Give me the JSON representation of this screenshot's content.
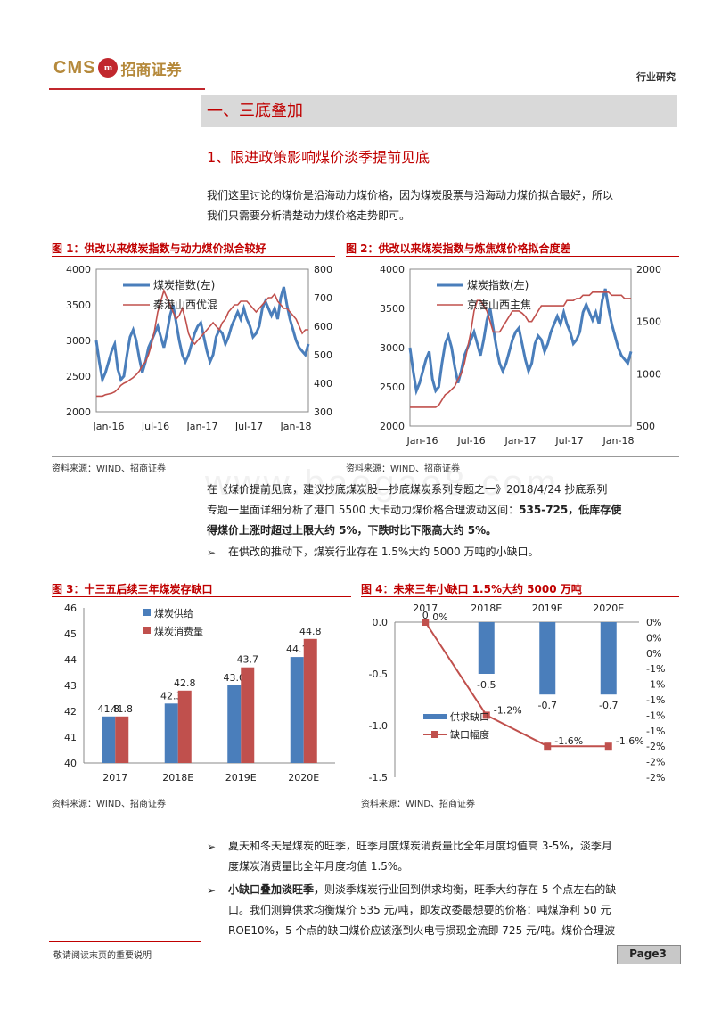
{
  "header": {
    "logo_cms": "CMS",
    "logo_seal": "m",
    "logo_cn": "招商证券",
    "right": "行业研究"
  },
  "section": {
    "title": "一、三底叠加",
    "subtitle": "1、限进政策影响煤价淡季提前见底"
  },
  "intro": [
    "我们这里讨论的煤价是沿海动力煤价格，因为煤炭股票与沿海动力煤价拟合最好，所以",
    "我们只需要分析清楚动力煤价格走势即可。"
  ],
  "fig1": {
    "title": "图 1：供改以来煤炭指数与动力煤价拟合较好",
    "source": "资料来源：WIND、招商证券"
  },
  "fig2": {
    "title": "图 2：供改以来煤炭指数与炼焦煤价格拟合度差",
    "source": "资料来源：WIND、招商证券"
  },
  "mid": {
    "line1": "在《煤价提前见底，建议抄底煤炭股—抄底煤炭系列专题之一》2018/4/24 抄底系列",
    "line2_a": "专题一里面详细分析了港口 5500 大卡动力煤价格合理波动区间：",
    "line2_b": "535-725，低库存使",
    "line3": "得煤价上涨时超过上限大约 5%，下跌时比下限高大约 5%。",
    "bullet": "在供改的推动下，煤炭行业存在 1.5%大约 5000 万吨的小缺口。"
  },
  "fig3": {
    "title": "图 3：十三五后续三年煤炭存缺口",
    "source": "资料来源：WIND、招商证券"
  },
  "fig4": {
    "title": "图 4：未来三年小缺口 1.5%大约 5000 万吨",
    "source": "资料来源：WIND、招商证券"
  },
  "lower": {
    "b1_l1": "夏天和冬天是煤炭的旺季，旺季月度煤炭消费量比全年月度均值高 3-5%，淡季月",
    "b1_l2": "度煤炭消费量比全年月度均值 1.5%。",
    "b2_l1_bold": "小缺口叠加淡旺季，",
    "b2_l1": "则淡季煤炭行业回到供求均衡，旺季大约存在 5 个点左右的缺",
    "b2_l2": "口。我们测算供求均衡煤价 535 元/吨，即发改委最想要的价格：吨煤净利 50 元",
    "b2_l3": "ROE10%，5 个点的缺口煤价应该涨到火电亏损现金流即 725 元/吨。煤价合理波"
  },
  "footer": {
    "note": "敬请阅读末页的重要说明",
    "page": "Page3"
  },
  "watermark": "www.baogao8.com",
  "chart_data": [
    {
      "id": "fig1",
      "type": "line",
      "x_ticks": [
        "Jan-16",
        "Jul-16",
        "Jan-17",
        "Jul-17",
        "Jan-18"
      ],
      "ylim_left": [
        2000,
        4000
      ],
      "yticks_left": [
        2000,
        2500,
        3000,
        3500,
        4000
      ],
      "ylim_right": [
        300,
        800
      ],
      "yticks_right": [
        300,
        400,
        500,
        600,
        700,
        800
      ],
      "series": [
        {
          "name": "煤炭指数(左)",
          "axis": "left",
          "color": "#4a7ebb",
          "values": [
            3000,
            2700,
            2450,
            2550,
            2700,
            2850,
            2950,
            2600,
            2450,
            2500,
            2800,
            3050,
            3150,
            3000,
            2750,
            2550,
            2700,
            2900,
            3000,
            3100,
            3200,
            3050,
            2900,
            3100,
            3350,
            3500,
            3250,
            3000,
            2800,
            2700,
            2800,
            2950,
            3100,
            3200,
            3250,
            3050,
            2850,
            2700,
            2800,
            3050,
            3150,
            3100,
            2950,
            3050,
            3200,
            3300,
            3400,
            3300,
            3450,
            3300,
            3200,
            3050,
            3100,
            3200,
            3450,
            3550,
            3450,
            3350,
            3450,
            3300,
            3600,
            3750,
            3500,
            3300,
            3150,
            3000,
            2900,
            2850,
            2800,
            2950
          ]
        },
        {
          "name": "秦港山西优混",
          "axis": "left",
          "color": "#c0504d",
          "values": [
            2220,
            2220,
            2220,
            2240,
            2250,
            2260,
            2280,
            2320,
            2370,
            2400,
            2420,
            2450,
            2480,
            2520,
            2570,
            2650,
            2700,
            2800,
            2950,
            3150,
            3400,
            3550,
            3700,
            3600,
            3500,
            3400,
            3300,
            3350,
            3450,
            3300,
            3100,
            3000,
            2950,
            3000,
            3050,
            3100,
            3150,
            3200,
            3250,
            3200,
            3150,
            3250,
            3300,
            3400,
            3450,
            3500,
            3500,
            3550,
            3550,
            3550,
            3500,
            3450,
            3400,
            3450,
            3500,
            3550,
            3600,
            3600,
            3650,
            3550,
            3500,
            3450,
            3450,
            3400,
            3350,
            3300,
            3200,
            3100,
            3150,
            3150
          ]
        }
      ],
      "right_axis_note": "秦港山西优混 plotted on right axis (元/吨)"
    },
    {
      "id": "fig2",
      "type": "line",
      "x_ticks": [
        "Jan-16",
        "Jul-16",
        "Jan-17",
        "Jul-17",
        "Jan-18"
      ],
      "ylim_left": [
        2000,
        4000
      ],
      "yticks_left": [
        2000,
        2500,
        3000,
        3500,
        4000
      ],
      "ylim_right": [
        500,
        2000
      ],
      "yticks_right": [
        500,
        1000,
        1500,
        2000
      ],
      "series": [
        {
          "name": "煤炭指数(左)",
          "axis": "left",
          "color": "#4a7ebb",
          "values": [
            3000,
            2700,
            2450,
            2550,
            2700,
            2850,
            2950,
            2600,
            2450,
            2500,
            2800,
            3050,
            3150,
            3000,
            2750,
            2550,
            2700,
            2900,
            3000,
            3100,
            3200,
            3050,
            2900,
            3100,
            3350,
            3500,
            3250,
            3000,
            2800,
            2700,
            2800,
            2950,
            3100,
            3200,
            3250,
            3050,
            2850,
            2700,
            2800,
            3050,
            3150,
            3100,
            2950,
            3050,
            3200,
            3300,
            3400,
            3300,
            3450,
            3300,
            3200,
            3050,
            3100,
            3200,
            3450,
            3550,
            3450,
            3350,
            3450,
            3300,
            3600,
            3750,
            3500,
            3300,
            3150,
            3000,
            2900,
            2850,
            2800,
            2950
          ]
        },
        {
          "name": "京唐山西主焦",
          "axis": "right",
          "color": "#c0504d",
          "values": [
            680,
            680,
            680,
            680,
            680,
            680,
            680,
            680,
            680,
            700,
            750,
            800,
            820,
            850,
            880,
            950,
            1000,
            1100,
            1250,
            1400,
            1600,
            1700,
            1700,
            1650,
            1600,
            1500,
            1400,
            1400,
            1400,
            1450,
            1500,
            1550,
            1600,
            1600,
            1600,
            1580,
            1550,
            1500,
            1500,
            1550,
            1600,
            1650,
            1650,
            1650,
            1650,
            1650,
            1650,
            1650,
            1650,
            1700,
            1700,
            1700,
            1720,
            1720,
            1750,
            1750,
            1750,
            1780,
            1780,
            1780,
            1780,
            1780,
            1780,
            1750,
            1750,
            1750,
            1750,
            1720,
            1720,
            1720
          ]
        }
      ]
    },
    {
      "id": "fig3",
      "type": "bar",
      "categories": [
        "2017",
        "2018E",
        "2019E",
        "2020E"
      ],
      "ylim": [
        40,
        46
      ],
      "yticks": [
        40,
        41,
        42,
        43,
        44,
        45,
        46
      ],
      "series": [
        {
          "name": "煤炭供给",
          "color": "#4a7ebb",
          "values": [
            41.8,
            42.3,
            43.0,
            44.1
          ]
        },
        {
          "name": "煤炭消费量",
          "color": "#c0504d",
          "values": [
            41.8,
            42.8,
            43.7,
            44.8
          ]
        }
      ],
      "labels_supply": [
        "41.8",
        "42.3",
        "43.0",
        "44.1"
      ],
      "labels_consumption": [
        "41.8",
        "42.8",
        "43.7",
        "44.8"
      ]
    },
    {
      "id": "fig4",
      "type": "bar",
      "categories": [
        "2017",
        "2018E",
        "2019E",
        "2020E"
      ],
      "ylim": [
        -1.5,
        0.0
      ],
      "yticks": [
        "0.0",
        "-0.5",
        "-1.0",
        "-1.5"
      ],
      "yticks_right": [
        "0%",
        "0%",
        "0%",
        "-1%",
        "-1%",
        "-1%",
        "-1%",
        "-1%",
        "-2%",
        "-2%",
        "-2%"
      ],
      "series": [
        {
          "name": "供求缺口",
          "color": "#4a7ebb",
          "values": [
            0,
            -0.5,
            -0.7,
            -0.7
          ],
          "labels": [
            "0",
            "-0.5",
            "-0.7",
            "-0.7"
          ]
        },
        {
          "name": "缺口幅度",
          "color": "#c0504d",
          "values": [
            0.0,
            -1.2,
            -1.6,
            -1.6
          ],
          "labels": [
            "0%",
            "-1.2%",
            "-1.6%",
            "-1.6%"
          ]
        }
      ]
    }
  ]
}
